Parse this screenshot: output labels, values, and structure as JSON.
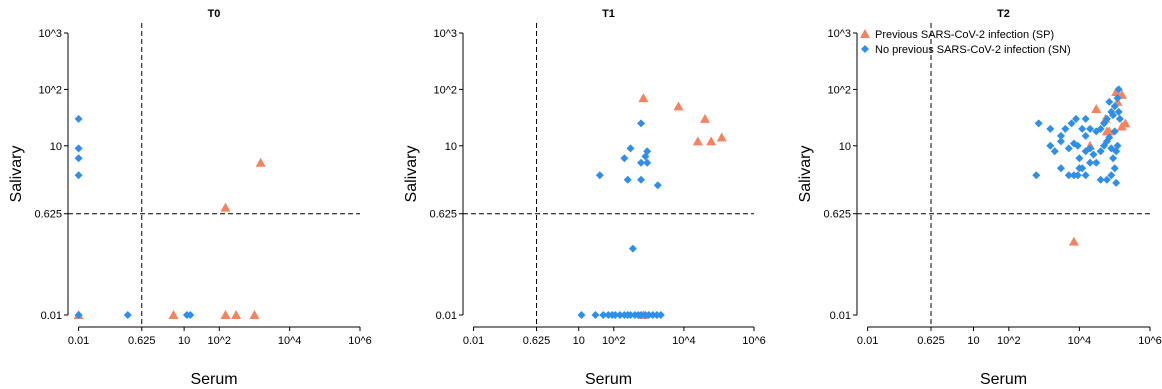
{
  "chart_data": [
    {
      "type": "scatter",
      "title": "T0",
      "xlabel": "Serum",
      "ylabel": "Salivary",
      "x_scale": "log10",
      "y_scale": "log10",
      "xlim": [
        0.005,
        1000000
      ],
      "ylim": [
        0.01,
        1000
      ],
      "x_ticks": [
        0.01,
        0.625,
        10,
        100,
        10000,
        1000000
      ],
      "x_tick_labels": [
        "0.01",
        "0.625",
        "10",
        "10^2",
        "10^4",
        "10^6"
      ],
      "y_ticks": [
        0.01,
        0.625,
        10,
        100,
        1000
      ],
      "y_tick_labels": [
        "0.01",
        "0.625",
        "10",
        "10^2",
        "10^3"
      ],
      "threshold_x": 0.625,
      "threshold_y": 0.625,
      "series": [
        {
          "name": "Previous SARS-CoV-2 infection (SP)",
          "marker": "triangle",
          "color": "#F4845F",
          "points": [
            [
              0.01,
              0.01
            ],
            [
              5,
              0.01
            ],
            [
              150,
              0.01
            ],
            [
              300,
              0.01
            ],
            [
              1000,
              0.01
            ],
            [
              150,
              0.8
            ],
            [
              1500,
              5
            ]
          ]
        },
        {
          "name": "No previous SARS-CoV-2 infection (SN)",
          "marker": "diamond",
          "color": "#2E8FEA",
          "points": [
            [
              0.01,
              0.01
            ],
            [
              0.25,
              0.01
            ],
            [
              12,
              0.01
            ],
            [
              15,
              0.01
            ],
            [
              0.01,
              30
            ],
            [
              0.01,
              9
            ],
            [
              0.01,
              6
            ],
            [
              0.01,
              3
            ]
          ]
        }
      ]
    },
    {
      "type": "scatter",
      "title": "T1",
      "xlabel": "Serum",
      "ylabel": "Salivary",
      "x_scale": "log10",
      "y_scale": "log10",
      "xlim": [
        0.005,
        1000000
      ],
      "ylim": [
        0.01,
        1000
      ],
      "x_ticks": [
        0.01,
        0.625,
        10,
        100,
        10000,
        1000000
      ],
      "x_tick_labels": [
        "0.01",
        "0.625",
        "10",
        "10^2",
        "10^4",
        "10^6"
      ],
      "y_ticks": [
        0.01,
        0.625,
        10,
        100,
        1000
      ],
      "y_tick_labels": [
        "0.01",
        "0.625",
        "10",
        "10^2",
        "10^3"
      ],
      "threshold_x": 0.625,
      "threshold_y": 0.625,
      "series": [
        {
          "name": "Previous SARS-CoV-2 infection (SP)",
          "marker": "triangle",
          "color": "#F4845F",
          "points": [
            [
              700,
              0.01
            ],
            [
              700,
              70
            ],
            [
              7000,
              50
            ],
            [
              40000,
              30
            ],
            [
              25000,
              12
            ],
            [
              60000,
              12
            ],
            [
              120000,
              14
            ]
          ]
        },
        {
          "name": "No previous SARS-CoV-2 infection (SN)",
          "marker": "diamond",
          "color": "#2E8FEA",
          "points": [
            [
              12,
              0.01
            ],
            [
              30,
              0.01
            ],
            [
              50,
              0.01
            ],
            [
              70,
              0.01
            ],
            [
              90,
              0.01
            ],
            [
              110,
              0.01
            ],
            [
              150,
              0.01
            ],
            [
              200,
              0.01
            ],
            [
              250,
              0.01
            ],
            [
              300,
              0.01
            ],
            [
              400,
              0.01
            ],
            [
              500,
              0.01
            ],
            [
              600,
              0.01
            ],
            [
              800,
              0.01
            ],
            [
              1000,
              0.01
            ],
            [
              1300,
              0.01
            ],
            [
              1700,
              0.01
            ],
            [
              2200,
              0.01
            ],
            [
              600,
              25
            ],
            [
              300,
              9
            ],
            [
              900,
              8
            ],
            [
              800,
              6.5
            ],
            [
              200,
              6
            ],
            [
              600,
              5
            ],
            [
              900,
              5
            ],
            [
              40,
              3
            ],
            [
              250,
              2.5
            ],
            [
              600,
              2.5
            ],
            [
              1800,
              2
            ],
            [
              350,
              0.15
            ]
          ]
        }
      ]
    },
    {
      "type": "scatter",
      "title": "T2",
      "xlabel": "Serum",
      "ylabel": "Salivary",
      "x_scale": "log10",
      "y_scale": "log10",
      "xlim": [
        0.005,
        1000000
      ],
      "ylim": [
        0.01,
        1000
      ],
      "x_ticks": [
        0.01,
        0.625,
        10,
        100,
        10000,
        1000000
      ],
      "x_tick_labels": [
        "0.01",
        "0.625",
        "10",
        "10^2",
        "10^4",
        "10^6"
      ],
      "y_ticks": [
        0.01,
        0.625,
        10,
        100,
        1000
      ],
      "y_tick_labels": [
        "0.01",
        "0.625",
        "10",
        "10^2",
        "10^3"
      ],
      "threshold_x": 0.625,
      "threshold_y": 0.625,
      "legend": {
        "position": "top-left",
        "entries": [
          "Previous SARS-CoV-2 infection (SP)",
          "No previous SARS-CoV-2 infection (SN)"
        ]
      },
      "series": [
        {
          "name": "Previous SARS-CoV-2 infection (SP)",
          "marker": "triangle",
          "color": "#F4845F",
          "points": [
            [
              7000,
              0.2
            ],
            [
              20000,
              10
            ],
            [
              30000,
              45
            ],
            [
              55000,
              30
            ],
            [
              60000,
              18
            ],
            [
              70000,
              18
            ],
            [
              110000,
              90
            ],
            [
              120000,
              60
            ],
            [
              160000,
              80
            ],
            [
              160000,
              22
            ],
            [
              200000,
              25
            ]
          ]
        },
        {
          "name": "No previous SARS-CoV-2 infection (SN)",
          "marker": "diamond",
          "color": "#2E8FEA",
          "points": [
            [
              700,
              25
            ],
            [
              1500,
              20
            ],
            [
              3000,
              15
            ],
            [
              4000,
              20
            ],
            [
              6000,
              25
            ],
            [
              8000,
              30
            ],
            [
              12000,
              20
            ],
            [
              15000,
              15
            ],
            [
              20000,
              20
            ],
            [
              30000,
              18
            ],
            [
              40000,
              20
            ],
            [
              50000,
              25
            ],
            [
              60000,
              30
            ],
            [
              80000,
              40
            ],
            [
              100000,
              50
            ],
            [
              120000,
              70
            ],
            [
              130000,
              100
            ],
            [
              1500,
              10
            ],
            [
              2000,
              8
            ],
            [
              3000,
              12
            ],
            [
              5000,
              9
            ],
            [
              7000,
              11
            ],
            [
              9000,
              10
            ],
            [
              10000,
              6
            ],
            [
              15000,
              8
            ],
            [
              20000,
              9
            ],
            [
              25000,
              7
            ],
            [
              30000,
              5
            ],
            [
              40000,
              8
            ],
            [
              50000,
              10
            ],
            [
              60000,
              12
            ],
            [
              70000,
              14
            ],
            [
              80000,
              9
            ],
            [
              90000,
              6
            ],
            [
              100000,
              18
            ],
            [
              110000,
              8
            ],
            [
              120000,
              10
            ],
            [
              600,
              3
            ],
            [
              3000,
              4
            ],
            [
              5000,
              3
            ],
            [
              7000,
              3
            ],
            [
              9000,
              3
            ],
            [
              10000,
              4
            ],
            [
              12000,
              4
            ],
            [
              15000,
              3
            ],
            [
              20000,
              5
            ],
            [
              40000,
              2.5
            ],
            [
              60000,
              2.5
            ],
            [
              80000,
              3
            ],
            [
              100000,
              4
            ],
            [
              110000,
              2.2
            ],
            [
              70000,
              60
            ],
            [
              90000,
              35
            ],
            [
              15000,
              30
            ],
            [
              130000,
              40
            ],
            [
              140000,
              30
            ]
          ]
        }
      ]
    }
  ]
}
